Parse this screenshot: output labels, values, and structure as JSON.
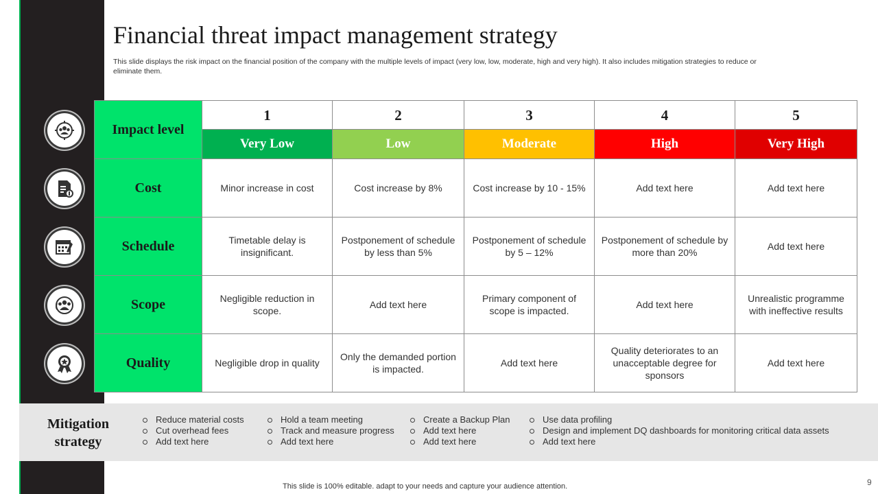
{
  "slide": {
    "title": "Financial threat impact management strategy",
    "subtitle": "This slide displays the risk impact on the financial position of the company with the multiple levels of impact (very low, low, moderate, high and very high). It also includes mitigation strategies to reduce or eliminate them.",
    "footer": "This slide is 100% editable. adapt to your needs and capture your audience attention.",
    "page_number": "9"
  },
  "colors": {
    "row_header_green": "#00e36b",
    "very_low": "#00b050",
    "low": "#92d050",
    "moderate": "#ffc000",
    "high": "#ff0000",
    "very_high": "#e00000",
    "sidebar": "#231f20"
  },
  "icons": [
    "team-target-icon",
    "cost-document-icon",
    "schedule-calendar-icon",
    "scope-group-icon",
    "quality-badge-icon"
  ],
  "table": {
    "impact_label": "Impact level",
    "levels": [
      {
        "num": "1",
        "name": "Very Low",
        "color": "#00b050"
      },
      {
        "num": "2",
        "name": "Low",
        "color": "#92d050"
      },
      {
        "num": "3",
        "name": "Moderate",
        "color": "#ffc000"
      },
      {
        "num": "4",
        "name": "High",
        "color": "#ff0000"
      },
      {
        "num": "5",
        "name": "Very High",
        "color": "#e00000"
      }
    ],
    "rows": [
      {
        "label": "Cost",
        "cells": [
          "Minor increase in cost",
          "Cost increase  by  8%",
          "Cost increase by  10 - 15%",
          "Add text here",
          "Add text here"
        ]
      },
      {
        "label": "Schedule",
        "cells": [
          "Timetable delay is insignificant.",
          "Postponement of schedule by  less than 5%",
          "Postponement of schedule by  5 – 12%",
          "Postponement of schedule by more than 20%",
          "Add text here"
        ]
      },
      {
        "label": "Scope",
        "cells": [
          "Negligible  reduction in scope.",
          "Add text here",
          "Primary component of scope is impacted.",
          "Add text here",
          "Unrealistic programme with ineffective results"
        ]
      },
      {
        "label": "Quality",
        "cells": [
          "Negligible  drop in quality",
          "Only the demanded portion is impacted.",
          "Add text here",
          "Quality deteriorates to an unacceptable degree for sponsors",
          "Add text here"
        ]
      }
    ]
  },
  "mitigation": {
    "label_line1": "Mitigation",
    "label_line2": "strategy",
    "columns": [
      [
        "Reduce material costs",
        "Cut overhead  fees",
        "Add text here"
      ],
      [
        "Hold a team meeting",
        "Track and measure progress",
        "Add text here"
      ],
      [
        "Create a Backup Plan",
        "Add text here",
        "Add text here"
      ],
      [
        "Use data profiling",
        "Design and implement DQ dashboards for monitoring critical data assets",
        "Add text here"
      ]
    ]
  }
}
